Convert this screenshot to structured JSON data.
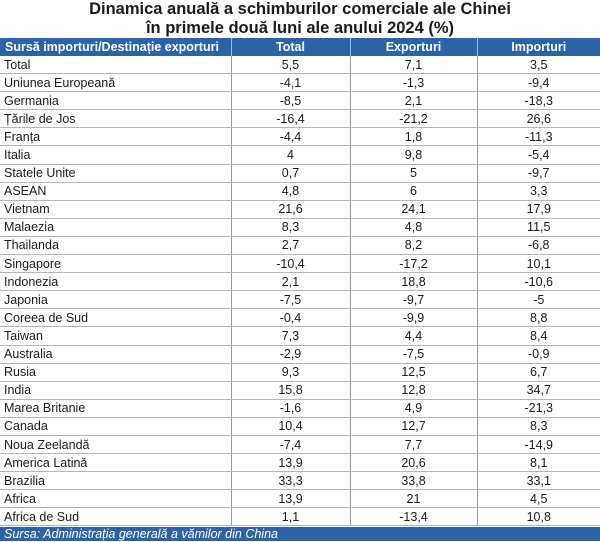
{
  "title_line1": "Dinamica anuală a schimburilor comerciale ale Chinei",
  "title_line2": "în primele două luni ale anului 2024 (%)",
  "columns": [
    "Sursă importuri/Destinație exporturi",
    "Total",
    "Exporturi",
    "Importuri"
  ],
  "rows": [
    [
      "Total",
      "5,5",
      "7,1",
      "3,5"
    ],
    [
      "Uniunea Europeană",
      "-4,1",
      "-1,3",
      "-9,4"
    ],
    [
      "Germania",
      "-8,5",
      "2,1",
      "-18,3"
    ],
    [
      "Țările de Jos",
      "-16,4",
      "-21,2",
      "26,6"
    ],
    [
      "Franța",
      "-4,4",
      "1,8",
      "-11,3"
    ],
    [
      "Italia",
      "4",
      "9,8",
      "-5,4"
    ],
    [
      "Statele Unite",
      "0,7",
      "5",
      "-9,7"
    ],
    [
      "ASEAN",
      "4,8",
      "6",
      "3,3"
    ],
    [
      "Vietnam",
      "21,6",
      "24,1",
      "17,9"
    ],
    [
      "Malaezia",
      "8,3",
      "4,8",
      "11,5"
    ],
    [
      "Thailanda",
      "2,7",
      "8,2",
      "-6,8"
    ],
    [
      "Singapore",
      "-10,4",
      "-17,2",
      "10,1"
    ],
    [
      "Indonezia",
      "2,1",
      "18,8",
      "-10,6"
    ],
    [
      "Japonia",
      "-7,5",
      "-9,7",
      "-5"
    ],
    [
      "Coreea de Sud",
      "-0,4",
      "-9,9",
      "8,8"
    ],
    [
      "Taiwan",
      "7,3",
      "4,4",
      "8,4"
    ],
    [
      "Australia",
      "-2,9",
      "-7,5",
      "-0,9"
    ],
    [
      "Rusia",
      "9,3",
      "12,5",
      "6,7"
    ],
    [
      "India",
      "15,8",
      "12,8",
      "34,7"
    ],
    [
      "Marea Britanie",
      "-1,6",
      "4,9",
      "-21,3"
    ],
    [
      "Canada",
      "10,4",
      "12,7",
      "8,3"
    ],
    [
      "Noua Zeelandă",
      "-7,4",
      "7,7",
      "-14,9"
    ],
    [
      "America Latină",
      "13,9",
      "20,6",
      "8,1"
    ],
    [
      "Brazilia",
      "33,3",
      "33,8",
      "33,1"
    ],
    [
      "Africa",
      "13,9",
      "21",
      "4,5"
    ],
    [
      "Africa de Sud",
      "1,1",
      "-13,4",
      "10,8"
    ]
  ],
  "source": "Sursa: Administrația generală a vămilor din China",
  "colors": {
    "header_bg": "#2b63a6",
    "header_text": "#ffffff"
  }
}
